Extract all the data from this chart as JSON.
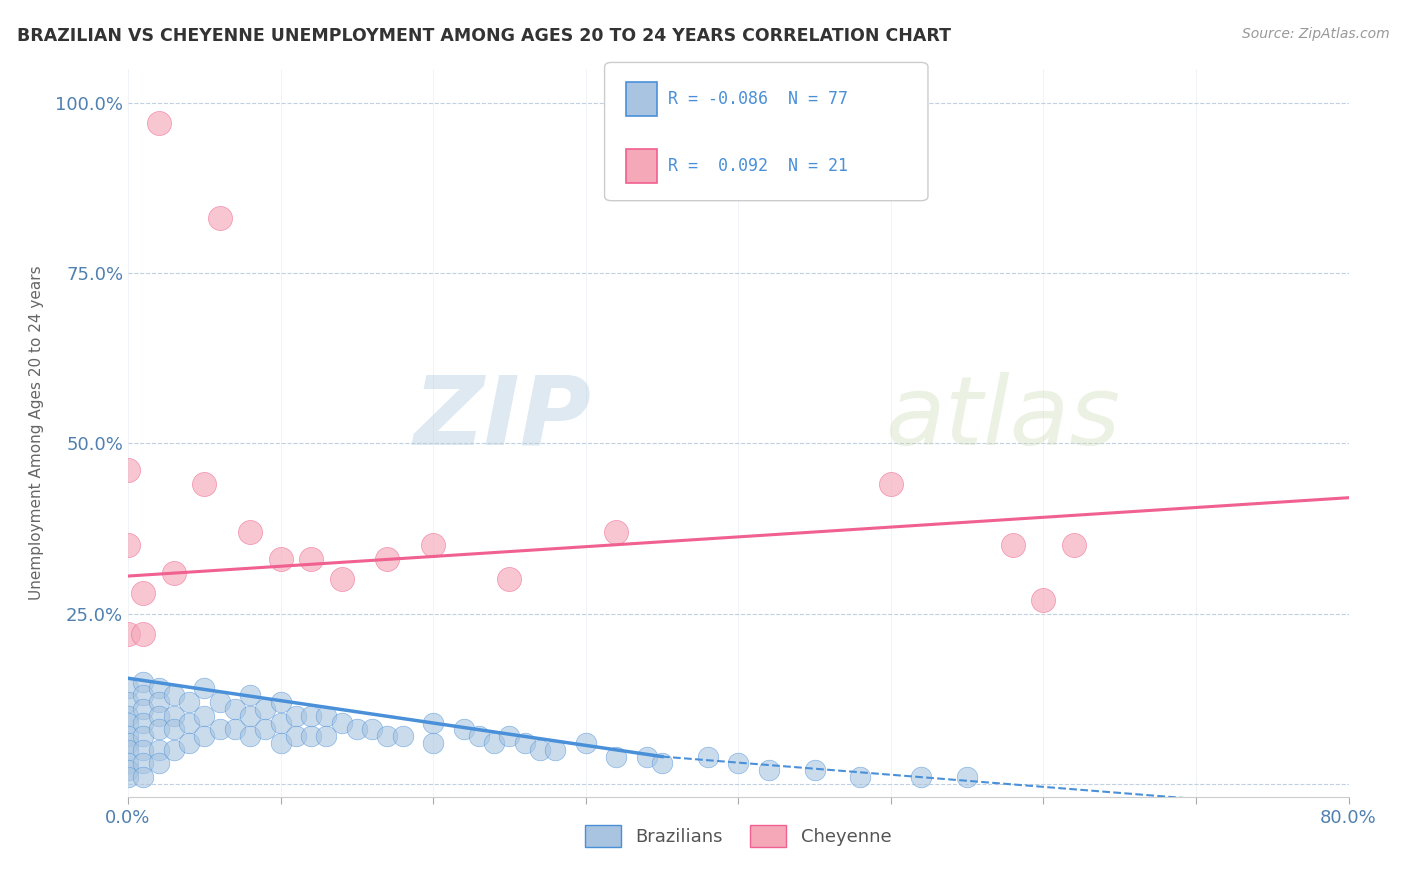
{
  "title": "BRAZILIAN VS CHEYENNE UNEMPLOYMENT AMONG AGES 20 TO 24 YEARS CORRELATION CHART",
  "source": "Source: ZipAtlas.com",
  "ylabel": "Unemployment Among Ages 20 to 24 years",
  "xlim": [
    0.0,
    0.8
  ],
  "ylim": [
    -0.02,
    1.05
  ],
  "xticks": [
    0.0,
    0.1,
    0.2,
    0.3,
    0.4,
    0.5,
    0.6,
    0.7,
    0.8
  ],
  "xticklabels": [
    "0.0%",
    "",
    "",
    "",
    "",
    "",
    "",
    "",
    "80.0%"
  ],
  "yticks": [
    0.0,
    0.25,
    0.5,
    0.75,
    1.0
  ],
  "yticklabels": [
    "",
    "25.0%",
    "50.0%",
    "75.0%",
    "100.0%"
  ],
  "brazilian_color": "#a8c4e0",
  "cheyenne_color": "#f4a8b8",
  "brazilian_line_color": "#4a90d9",
  "cheyenne_line_color": "#f06090",
  "R_brazilian": -0.086,
  "N_brazilian": 77,
  "R_cheyenne": 0.092,
  "N_cheyenne": 21,
  "legend_label_1": "Brazilians",
  "legend_label_2": "Cheyenne",
  "watermark_zip": "ZIP",
  "watermark_atlas": "atlas",
  "background_color": "#ffffff",
  "grid_color": "#c0d0e0",
  "brazilian_x": [
    0.0,
    0.0,
    0.0,
    0.0,
    0.0,
    0.0,
    0.0,
    0.0,
    0.0,
    0.0,
    0.01,
    0.01,
    0.01,
    0.01,
    0.01,
    0.01,
    0.01,
    0.01,
    0.02,
    0.02,
    0.02,
    0.02,
    0.02,
    0.02,
    0.03,
    0.03,
    0.03,
    0.03,
    0.04,
    0.04,
    0.04,
    0.05,
    0.05,
    0.05,
    0.06,
    0.06,
    0.07,
    0.07,
    0.08,
    0.08,
    0.08,
    0.09,
    0.09,
    0.1,
    0.1,
    0.1,
    0.11,
    0.11,
    0.12,
    0.12,
    0.13,
    0.13,
    0.14,
    0.15,
    0.16,
    0.17,
    0.18,
    0.2,
    0.2,
    0.22,
    0.23,
    0.24,
    0.25,
    0.26,
    0.27,
    0.28,
    0.3,
    0.32,
    0.34,
    0.35,
    0.38,
    0.4,
    0.42,
    0.45,
    0.48,
    0.52,
    0.55
  ],
  "brazilian_y": [
    0.14,
    0.12,
    0.1,
    0.09,
    0.07,
    0.06,
    0.05,
    0.03,
    0.02,
    0.01,
    0.15,
    0.13,
    0.11,
    0.09,
    0.07,
    0.05,
    0.03,
    0.01,
    0.14,
    0.12,
    0.1,
    0.08,
    0.05,
    0.03,
    0.13,
    0.1,
    0.08,
    0.05,
    0.12,
    0.09,
    0.06,
    0.14,
    0.1,
    0.07,
    0.12,
    0.08,
    0.11,
    0.08,
    0.13,
    0.1,
    0.07,
    0.11,
    0.08,
    0.12,
    0.09,
    0.06,
    0.1,
    0.07,
    0.1,
    0.07,
    0.1,
    0.07,
    0.09,
    0.08,
    0.08,
    0.07,
    0.07,
    0.09,
    0.06,
    0.08,
    0.07,
    0.06,
    0.07,
    0.06,
    0.05,
    0.05,
    0.06,
    0.04,
    0.04,
    0.03,
    0.04,
    0.03,
    0.02,
    0.02,
    0.01,
    0.01,
    0.01
  ],
  "cheyenne_x": [
    0.0,
    0.0,
    0.0,
    0.01,
    0.01,
    0.02,
    0.03,
    0.05,
    0.06,
    0.08,
    0.1,
    0.12,
    0.14,
    0.17,
    0.2,
    0.25,
    0.32,
    0.5,
    0.58,
    0.6,
    0.62
  ],
  "cheyenne_y": [
    0.46,
    0.35,
    0.22,
    0.28,
    0.22,
    0.97,
    0.31,
    0.44,
    0.83,
    0.37,
    0.33,
    0.33,
    0.3,
    0.33,
    0.35,
    0.3,
    0.37,
    0.44,
    0.35,
    0.27,
    0.35
  ],
  "cheyenne_line_x0": 0.0,
  "cheyenne_line_y0": 0.305,
  "cheyenne_line_x1": 0.8,
  "cheyenne_line_y1": 0.42,
  "brazilian_line_solid_x0": 0.0,
  "brazilian_line_solid_y0": 0.155,
  "brazilian_line_solid_x1": 0.35,
  "brazilian_line_solid_y1": 0.04,
  "brazilian_line_dash_x1": 0.8,
  "brazilian_line_dash_y1": -0.04
}
